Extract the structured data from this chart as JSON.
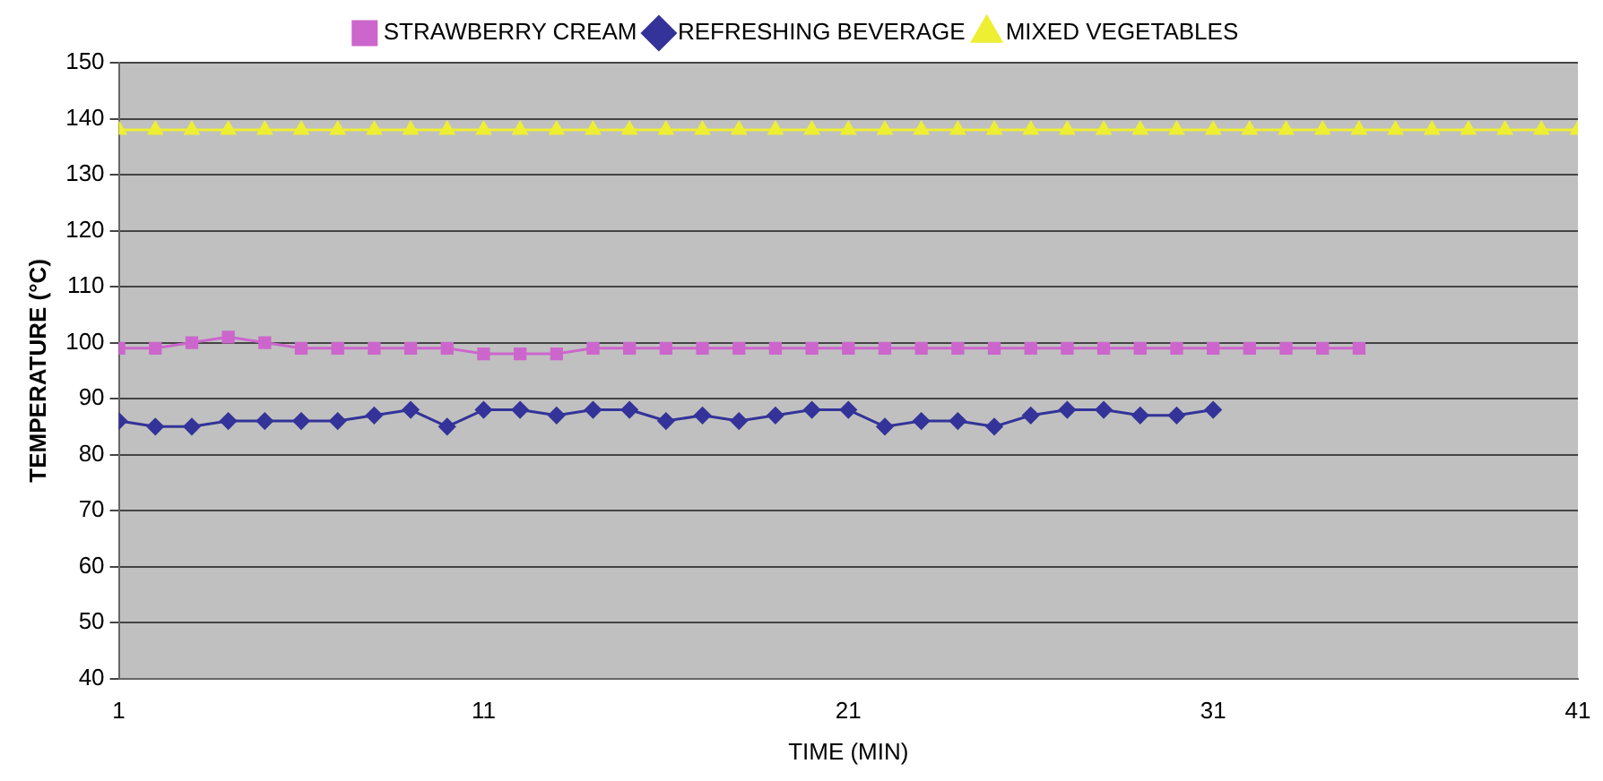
{
  "chart_data": {
    "type": "line",
    "xlabel": "TIME (MIN)",
    "ylabel": "TEMPERATURE (°C)",
    "xlim": [
      1,
      41
    ],
    "xticks": [
      1,
      11,
      21,
      31,
      41
    ],
    "ylim": [
      40,
      150
    ],
    "yticks": [
      40,
      50,
      60,
      70,
      80,
      90,
      100,
      110,
      120,
      130,
      140,
      150
    ],
    "grid": "y",
    "legend": "top",
    "x": [
      1,
      2,
      3,
      4,
      5,
      6,
      7,
      8,
      9,
      10,
      11,
      12,
      13,
      14,
      15,
      16,
      17,
      18,
      19,
      20,
      21,
      22,
      23,
      24,
      25,
      26,
      27,
      28,
      29,
      30,
      31,
      32,
      33,
      34,
      35,
      36,
      37,
      38,
      39,
      40,
      41
    ],
    "series": [
      {
        "name": "STRAWBERRY CREAM",
        "color": "#cc66cc",
        "marker": "square",
        "values": [
          99,
          99,
          100,
          101,
          100,
          99,
          99,
          99,
          99,
          99,
          98,
          98,
          98,
          99,
          99,
          99,
          99,
          99,
          99,
          99,
          99,
          99,
          99,
          99,
          99,
          99,
          99,
          99,
          99,
          99,
          99,
          99,
          99,
          99,
          99,
          null,
          null,
          null,
          null,
          null,
          null
        ]
      },
      {
        "name": "REFRESHING BEVERAGE",
        "color": "#333399",
        "marker": "diamond",
        "values": [
          86,
          85,
          85,
          86,
          86,
          86,
          86,
          87,
          88,
          85,
          88,
          88,
          87,
          88,
          88,
          86,
          87,
          86,
          87,
          88,
          88,
          85,
          86,
          86,
          85,
          87,
          88,
          88,
          87,
          87,
          88,
          null,
          null,
          null,
          null,
          null,
          null,
          null,
          null,
          null,
          null
        ]
      },
      {
        "name": "MIXED VEGETABLES",
        "color": "#eeee33",
        "marker": "triangle",
        "values": [
          138,
          138,
          138,
          138,
          138,
          138,
          138,
          138,
          138,
          138,
          138,
          138,
          138,
          138,
          138,
          138,
          138,
          138,
          138,
          138,
          138,
          138,
          138,
          138,
          138,
          138,
          138,
          138,
          138,
          138,
          138,
          138,
          138,
          138,
          138,
          138,
          138,
          138,
          138,
          138,
          138
        ]
      }
    ]
  }
}
